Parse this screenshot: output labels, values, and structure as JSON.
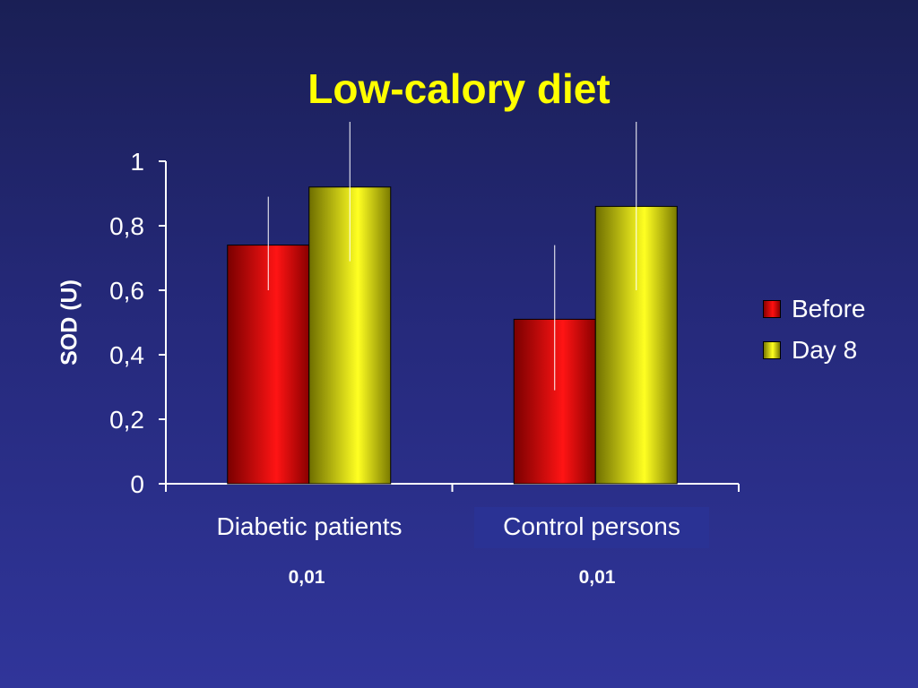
{
  "chart_data": {
    "type": "bar",
    "title": "Low-calory diet",
    "ylabel": "SOD (U)",
    "xlabel": "",
    "categories": [
      "Diabetic patients",
      "Control persons"
    ],
    "series": [
      {
        "name": "Before",
        "values": [
          0.74,
          0.51
        ],
        "error_low": [
          0.6,
          0.29
        ],
        "error_high": [
          0.89,
          0.74
        ]
      },
      {
        "name": "Day 8",
        "values": [
          0.92,
          0.86
        ],
        "error_low": [
          0.69,
          0.6
        ],
        "error_high": [
          1.13,
          1.13
        ]
      }
    ],
    "ylim": [
      0,
      1
    ],
    "yticks": [
      "0",
      "0,2",
      "0,4",
      "0,6",
      "0,8",
      "1"
    ],
    "annotations": [
      "0,01",
      "0,01"
    ],
    "legend": "right",
    "grid": false,
    "colors": {
      "before": "#e00000",
      "day8": "#e0e000",
      "title": "#ffff00",
      "text": "#ffffff"
    }
  }
}
